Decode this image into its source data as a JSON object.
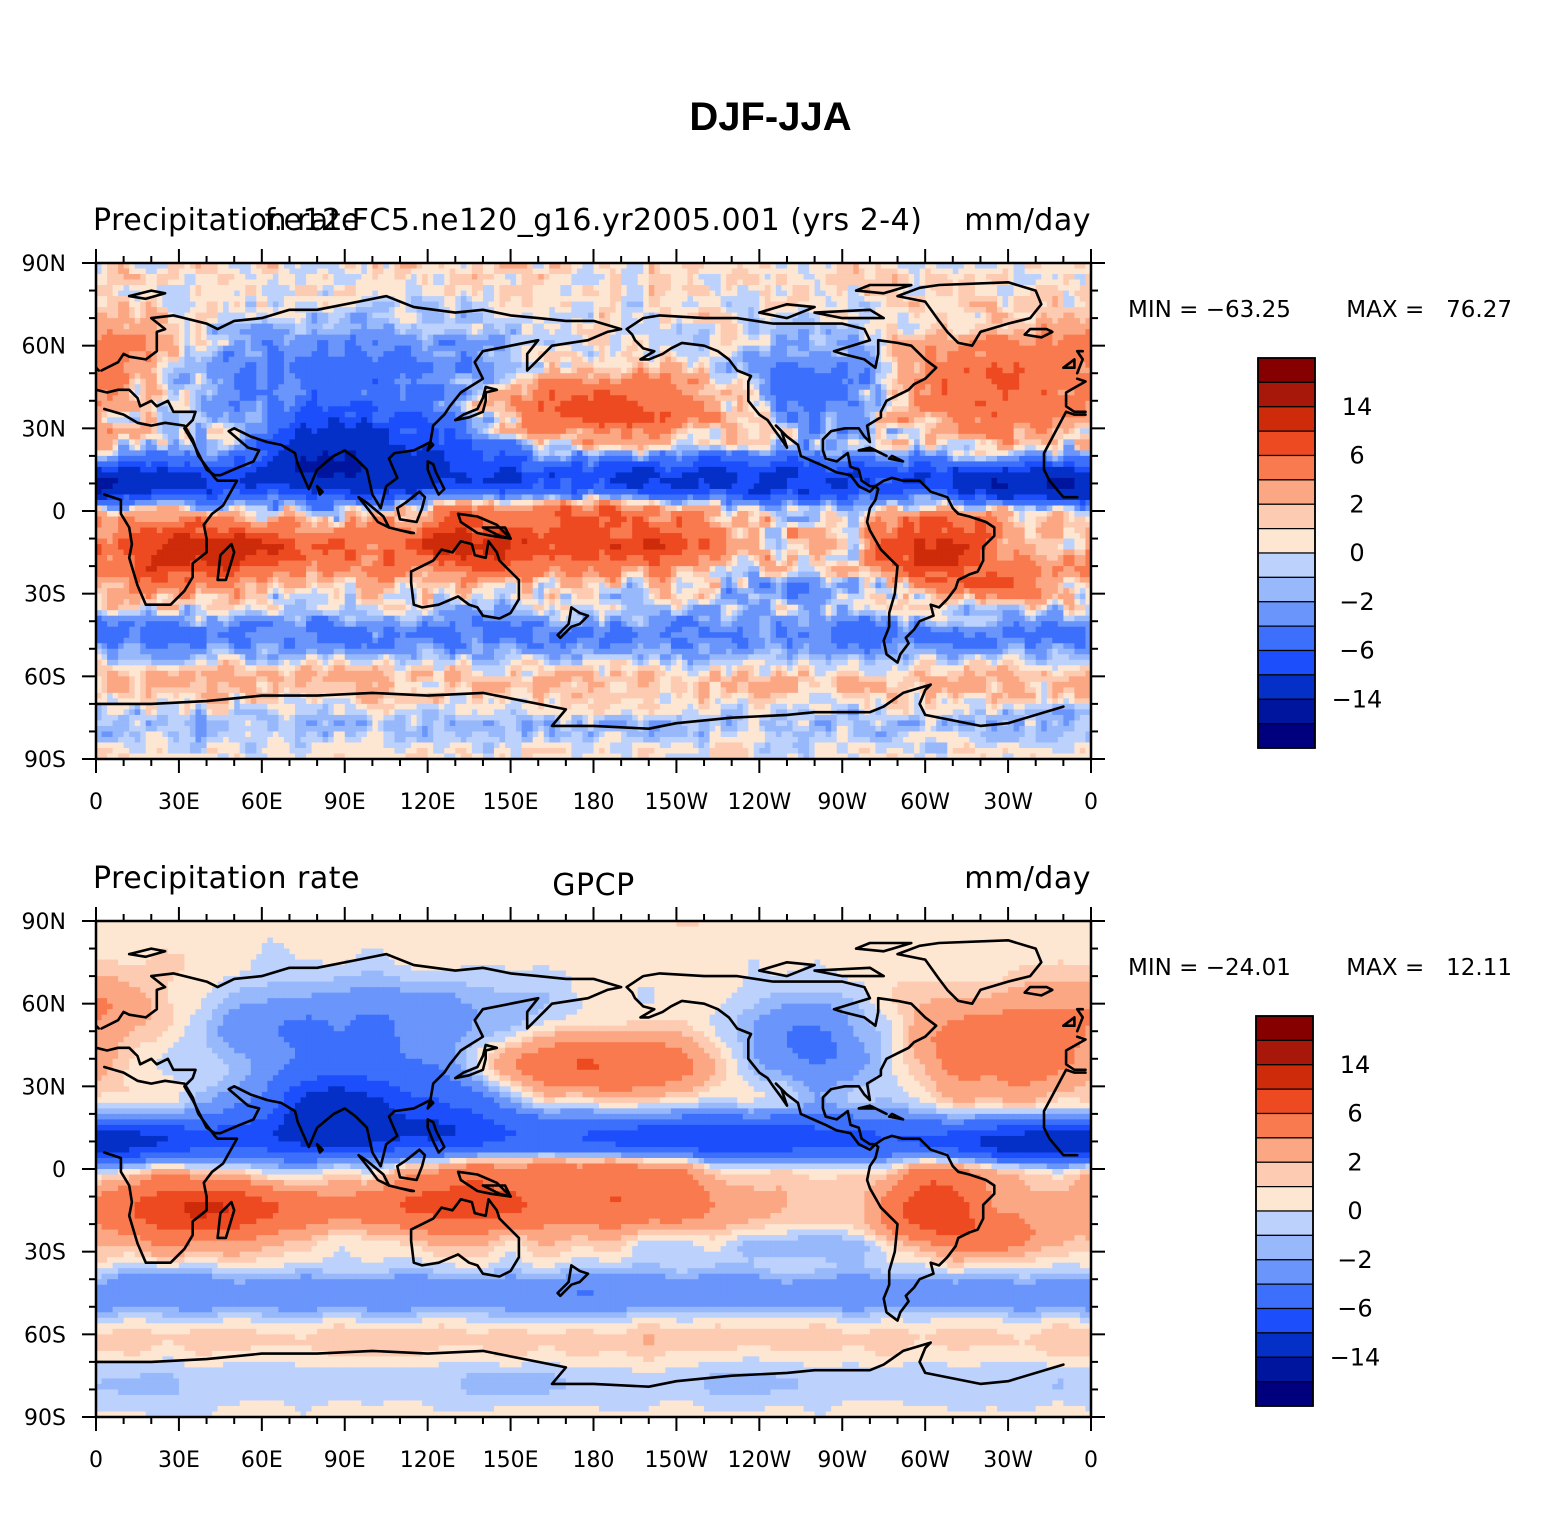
{
  "title": "DJF-JJA",
  "palette": [
    "#00007f",
    "#00159e",
    "#0530c8",
    "#1c4efc",
    "#3c6ffc",
    "#6a95fb",
    "#97b8fb",
    "#bcd2fc",
    "#d8e8fd",
    "#fde6d2",
    "#fdcbb1",
    "#fca784",
    "#f97a4e",
    "#ee4a22",
    "#cd2b0a",
    "#a8180a",
    "#870000"
  ],
  "chart_data": [
    {
      "type": "heatmap",
      "name": "model",
      "title_left": "Precipitation rate",
      "title_center": "f.e12.FC5.ne120_g16.yr2005.001 (yrs 2-4)",
      "title_right": "mm/day",
      "min_text": "MIN = −63.25",
      "max_text": "MAX =   76.27",
      "xlabel": "",
      "ylabel": "",
      "xlim": [
        0,
        360
      ],
      "ylim": [
        -90,
        90
      ],
      "x_ticks": [
        "0",
        "30E",
        "60E",
        "90E",
        "120E",
        "150E",
        "180",
        "150W",
        "120W",
        "90W",
        "60W",
        "30W",
        "0"
      ],
      "y_ticks": [
        "90S",
        "60S",
        "30S",
        "0",
        "30N",
        "60N",
        "90N"
      ],
      "colorbar_labels": [
        "14",
        "6",
        "2",
        "0",
        "−2",
        "−6",
        "−14"
      ]
    },
    {
      "type": "heatmap",
      "name": "observations",
      "title_left": "Precipitation rate",
      "title_center": "GPCP",
      "title_right": "mm/day",
      "min_text": "MIN = −24.01",
      "max_text": "MAX =   12.11",
      "xlabel": "",
      "ylabel": "",
      "xlim": [
        0,
        360
      ],
      "ylim": [
        -90,
        90
      ],
      "x_ticks": [
        "0",
        "30E",
        "60E",
        "90E",
        "120E",
        "150E",
        "180",
        "150W",
        "120W",
        "90W",
        "60W",
        "30W",
        "0"
      ],
      "y_ticks": [
        "90S",
        "60S",
        "30S",
        "0",
        "30N",
        "60N",
        "90N"
      ],
      "colorbar_labels": [
        "14",
        "6",
        "2",
        "0",
        "−2",
        "−6",
        "−14"
      ]
    }
  ]
}
